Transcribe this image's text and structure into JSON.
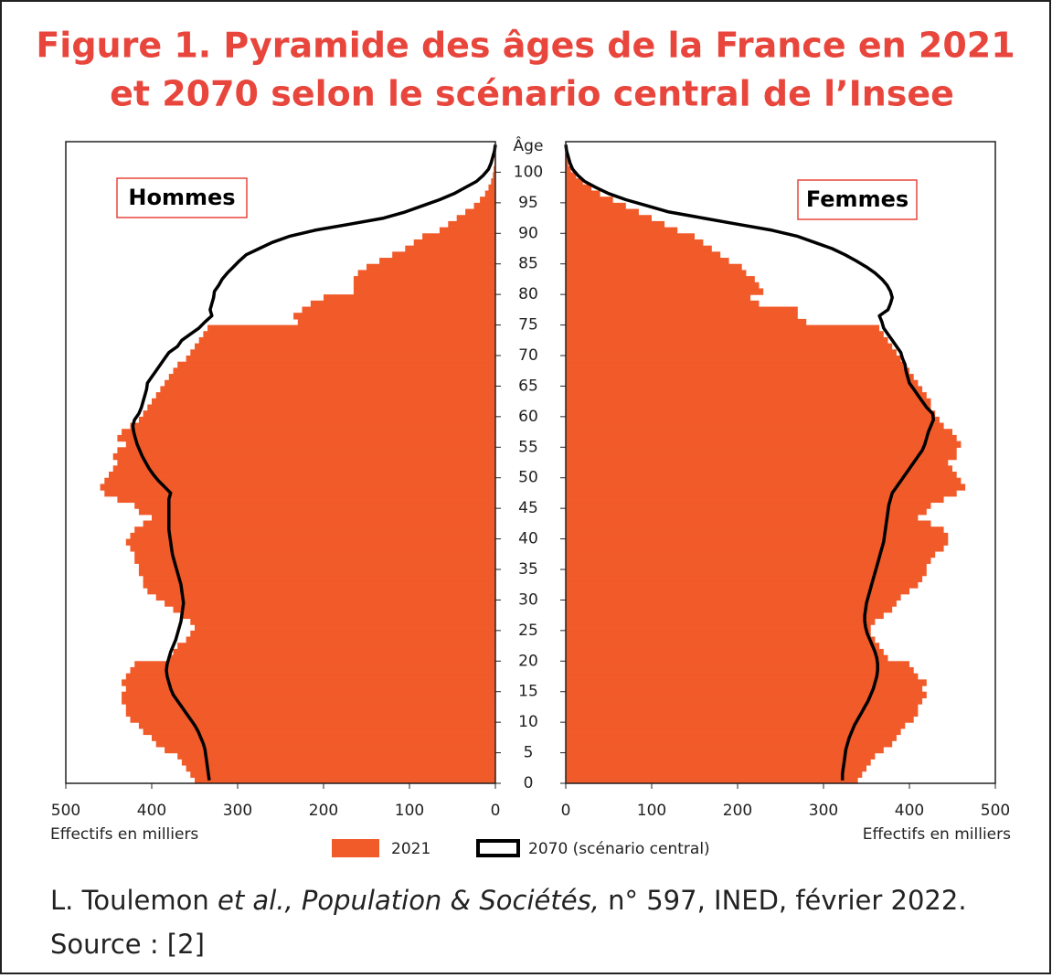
{
  "chart_data": {
    "type": "pyramid",
    "title_lines": [
      "Figure 1. Pyramide des âges de la France en 2021",
      "et 2070 selon le scénario central de l’Insee"
    ],
    "left_label": "Hommes",
    "right_label": "Femmes",
    "y_axis_label": "Âge",
    "x_axis_label": "Effectifs en milliers",
    "y": [
      0,
      1,
      2,
      3,
      4,
      5,
      6,
      7,
      8,
      9,
      10,
      11,
      12,
      13,
      14,
      15,
      16,
      17,
      18,
      19,
      20,
      21,
      22,
      23,
      24,
      25,
      26,
      27,
      28,
      29,
      30,
      31,
      32,
      33,
      34,
      35,
      36,
      37,
      38,
      39,
      40,
      41,
      42,
      43,
      44,
      45,
      46,
      47,
      48,
      49,
      50,
      51,
      52,
      53,
      54,
      55,
      56,
      57,
      58,
      59,
      60,
      61,
      62,
      63,
      64,
      65,
      66,
      67,
      68,
      69,
      70,
      71,
      72,
      73,
      74,
      75,
      76,
      77,
      78,
      79,
      80,
      81,
      82,
      83,
      84,
      85,
      86,
      87,
      88,
      89,
      90,
      91,
      92,
      93,
      94,
      95,
      96,
      97,
      98,
      99,
      100,
      101,
      102,
      103,
      104
    ],
    "ylim": [
      0,
      105
    ],
    "yticks": [
      0,
      5,
      10,
      15,
      20,
      25,
      30,
      35,
      40,
      45,
      50,
      55,
      60,
      65,
      70,
      75,
      80,
      85,
      90,
      95,
      100
    ],
    "xlim": [
      0,
      500
    ],
    "xticks": [
      0,
      100,
      200,
      300,
      400,
      500
    ],
    "series": [
      {
        "name": "2021",
        "style": "bars",
        "color": "#f15a29",
        "left": [
          350,
          355,
          360,
          365,
          370,
          385,
          395,
          400,
          410,
          415,
          425,
          430,
          430,
          435,
          435,
          430,
          435,
          430,
          425,
          420,
          380,
          375,
          370,
          360,
          355,
          350,
          355,
          365,
          375,
          385,
          395,
          405,
          410,
          410,
          415,
          415,
          420,
          420,
          425,
          430,
          425,
          420,
          410,
          400,
          415,
          420,
          440,
          455,
          460,
          455,
          450,
          445,
          440,
          445,
          440,
          430,
          440,
          435,
          425,
          415,
          410,
          405,
          400,
          395,
          390,
          385,
          380,
          375,
          370,
          360,
          355,
          350,
          345,
          340,
          335,
          230,
          235,
          225,
          215,
          200,
          165,
          165,
          165,
          160,
          150,
          135,
          120,
          105,
          95,
          85,
          65,
          55,
          45,
          35,
          25,
          18,
          12,
          8,
          5,
          3,
          2,
          1,
          1,
          0,
          0
        ],
        "right": [
          340,
          345,
          350,
          355,
          360,
          370,
          380,
          385,
          390,
          395,
          405,
          410,
          410,
          415,
          420,
          415,
          420,
          410,
          405,
          400,
          375,
          370,
          365,
          360,
          355,
          355,
          360,
          370,
          380,
          385,
          390,
          400,
          410,
          415,
          420,
          420,
          425,
          430,
          440,
          445,
          445,
          440,
          425,
          410,
          420,
          425,
          440,
          455,
          465,
          460,
          455,
          450,
          445,
          455,
          455,
          460,
          455,
          450,
          440,
          435,
          430,
          425,
          425,
          420,
          415,
          410,
          405,
          400,
          395,
          390,
          385,
          380,
          375,
          370,
          365,
          280,
          270,
          270,
          225,
          215,
          230,
          225,
          220,
          210,
          205,
          190,
          180,
          170,
          160,
          150,
          130,
          115,
          100,
          85,
          70,
          55,
          40,
          30,
          20,
          12,
          6,
          3,
          2,
          1,
          0
        ]
      },
      {
        "name": "2070 (scénario central)",
        "style": "line",
        "color": "#000000",
        "left": [
          333,
          334,
          335,
          336,
          337,
          338,
          340,
          343,
          346,
          350,
          355,
          360,
          365,
          370,
          375,
          378,
          380,
          382,
          383,
          382,
          380,
          378,
          375,
          372,
          370,
          368,
          366,
          365,
          364,
          363,
          364,
          365,
          366,
          368,
          370,
          372,
          374,
          376,
          377,
          378,
          379,
          380,
          380,
          380,
          380,
          380,
          380,
          378,
          385,
          392,
          398,
          403,
          407,
          411,
          414,
          417,
          419,
          421,
          422,
          420,
          415,
          412,
          410,
          408,
          406,
          405,
          400,
          395,
          390,
          385,
          380,
          370,
          365,
          355,
          345,
          338,
          330,
          332,
          330,
          328,
          327,
          322,
          318,
          312,
          305,
          298,
          290,
          275,
          260,
          240,
          210,
          170,
          130,
          105,
          85,
          65,
          48,
          35,
          22,
          14,
          8,
          5,
          3,
          1,
          0
        ],
        "right": [
          322,
          322,
          323,
          324,
          325,
          326,
          328,
          330,
          333,
          336,
          340,
          344,
          348,
          352,
          355,
          358,
          360,
          362,
          363,
          363,
          362,
          360,
          357,
          354,
          351,
          349,
          348,
          348,
          349,
          350,
          352,
          354,
          356,
          358,
          360,
          362,
          364,
          366,
          368,
          370,
          371,
          372,
          373,
          374,
          375,
          376,
          378,
          380,
          385,
          390,
          395,
          400,
          405,
          410,
          415,
          418,
          420,
          422,
          425,
          428,
          427,
          420,
          415,
          410,
          405,
          400,
          398,
          396,
          395,
          392,
          390,
          385,
          380,
          375,
          370,
          368,
          365,
          375,
          378,
          380,
          378,
          374,
          368,
          360,
          350,
          338,
          325,
          310,
          290,
          270,
          240,
          200,
          160,
          120,
          95,
          70,
          50,
          35,
          22,
          14,
          8,
          5,
          3,
          1,
          0
        ]
      }
    ],
    "source_parts": [
      "L. Toulemon ",
      "et al., Population & Sociétés,",
      " n° 597, INED, février 2022."
    ],
    "source_ref": "Source : [2]"
  }
}
